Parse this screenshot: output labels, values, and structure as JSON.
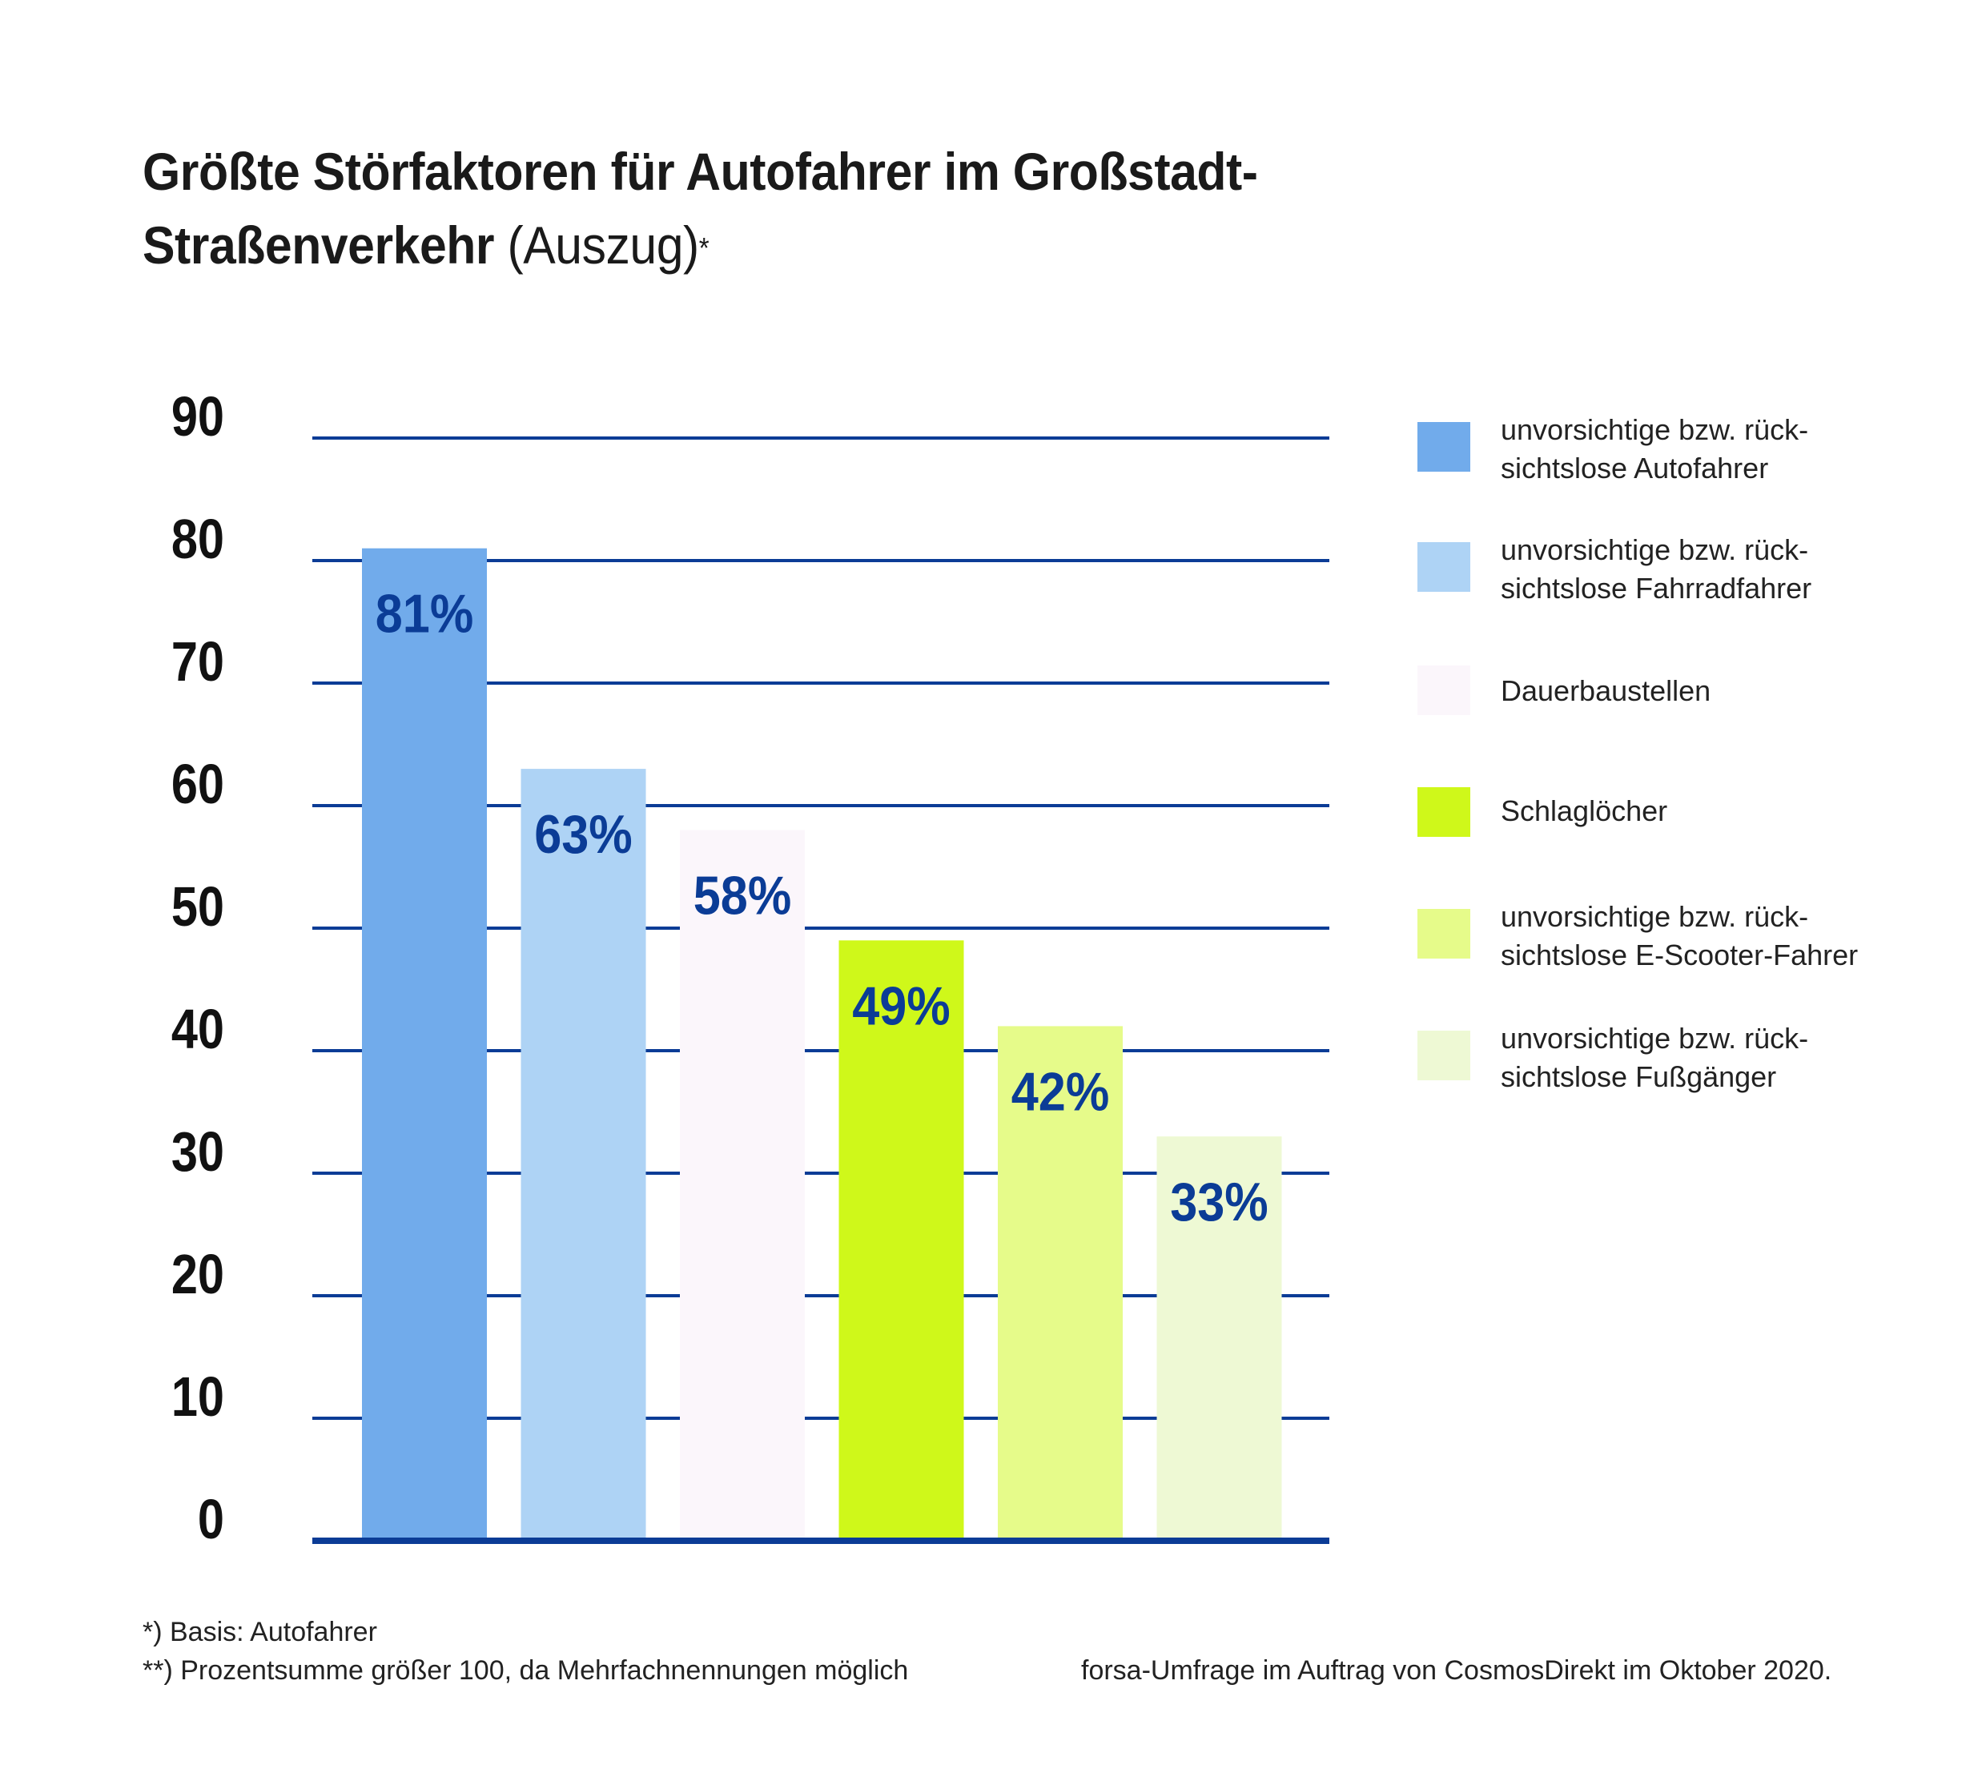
{
  "title": {
    "line1": "Größte Störfaktoren für Autofahrer im Großstadt-",
    "line2_bold": "Straßenverkehr",
    "line2_light": " (Auszug)",
    "marker": "*"
  },
  "chart_data": {
    "type": "bar",
    "ylim": [
      0,
      90
    ],
    "yticks": [
      "0",
      "10",
      "20",
      "30",
      "40",
      "50",
      "60",
      "70",
      "80",
      "90"
    ],
    "grid": true,
    "legend_position": "right",
    "categories": [
      "unvorsichtige bzw. rück-sichtslose Autofahrer",
      "unvorsichtige bzw. rück-sichtslose Fahrradfahrer",
      "Dauerbaustellen",
      "Schlaglöcher",
      "unvorsichtige bzw. rück-sichtslose E-Scooter-Fahrer",
      "unvorsichtige bzw. rück-sichtslose Fußgänger"
    ],
    "values": [
      81,
      63,
      58,
      49,
      42,
      33
    ],
    "data_labels": [
      "81%",
      "63%",
      "58%",
      "49%",
      "42%",
      "33%"
    ],
    "colors": [
      "#71abeb",
      "#aed3f5",
      "#fbf6fb",
      "#cff81a",
      "#e6fb8a",
      "#eef9d4"
    ],
    "grid_color": "#0b3c96",
    "label_color": "#0b3c96",
    "legend": [
      {
        "line1": "unvorsichtige bzw. rück-",
        "line2": "sichtslose Autofahrer",
        "color": "#71abeb"
      },
      {
        "line1": "unvorsichtige bzw. rück-",
        "line2": "sichtslose Fahrradfahrer",
        "color": "#aed3f5"
      },
      {
        "line1": "Dauerbaustellen",
        "line2": "",
        "color": "#fbf6fb"
      },
      {
        "line1": "Schlaglöcher",
        "line2": "",
        "color": "#cff81a"
      },
      {
        "line1": "unvorsichtige bzw. rück-",
        "line2": "sichtslose E-Scooter-Fahrer",
        "color": "#e6fb8a"
      },
      {
        "line1": "unvorsichtige bzw. rück-",
        "line2": "sichtslose Fußgänger",
        "color": "#eef9d4"
      }
    ]
  },
  "footnotes": {
    "basis": "*) Basis: Autofahrer",
    "sum": "**) Prozentsumme größer 100, da Mehrfachnennungen möglich",
    "source": "forsa-Umfrage im Auftrag von CosmosDirekt im Oktober 2020."
  }
}
